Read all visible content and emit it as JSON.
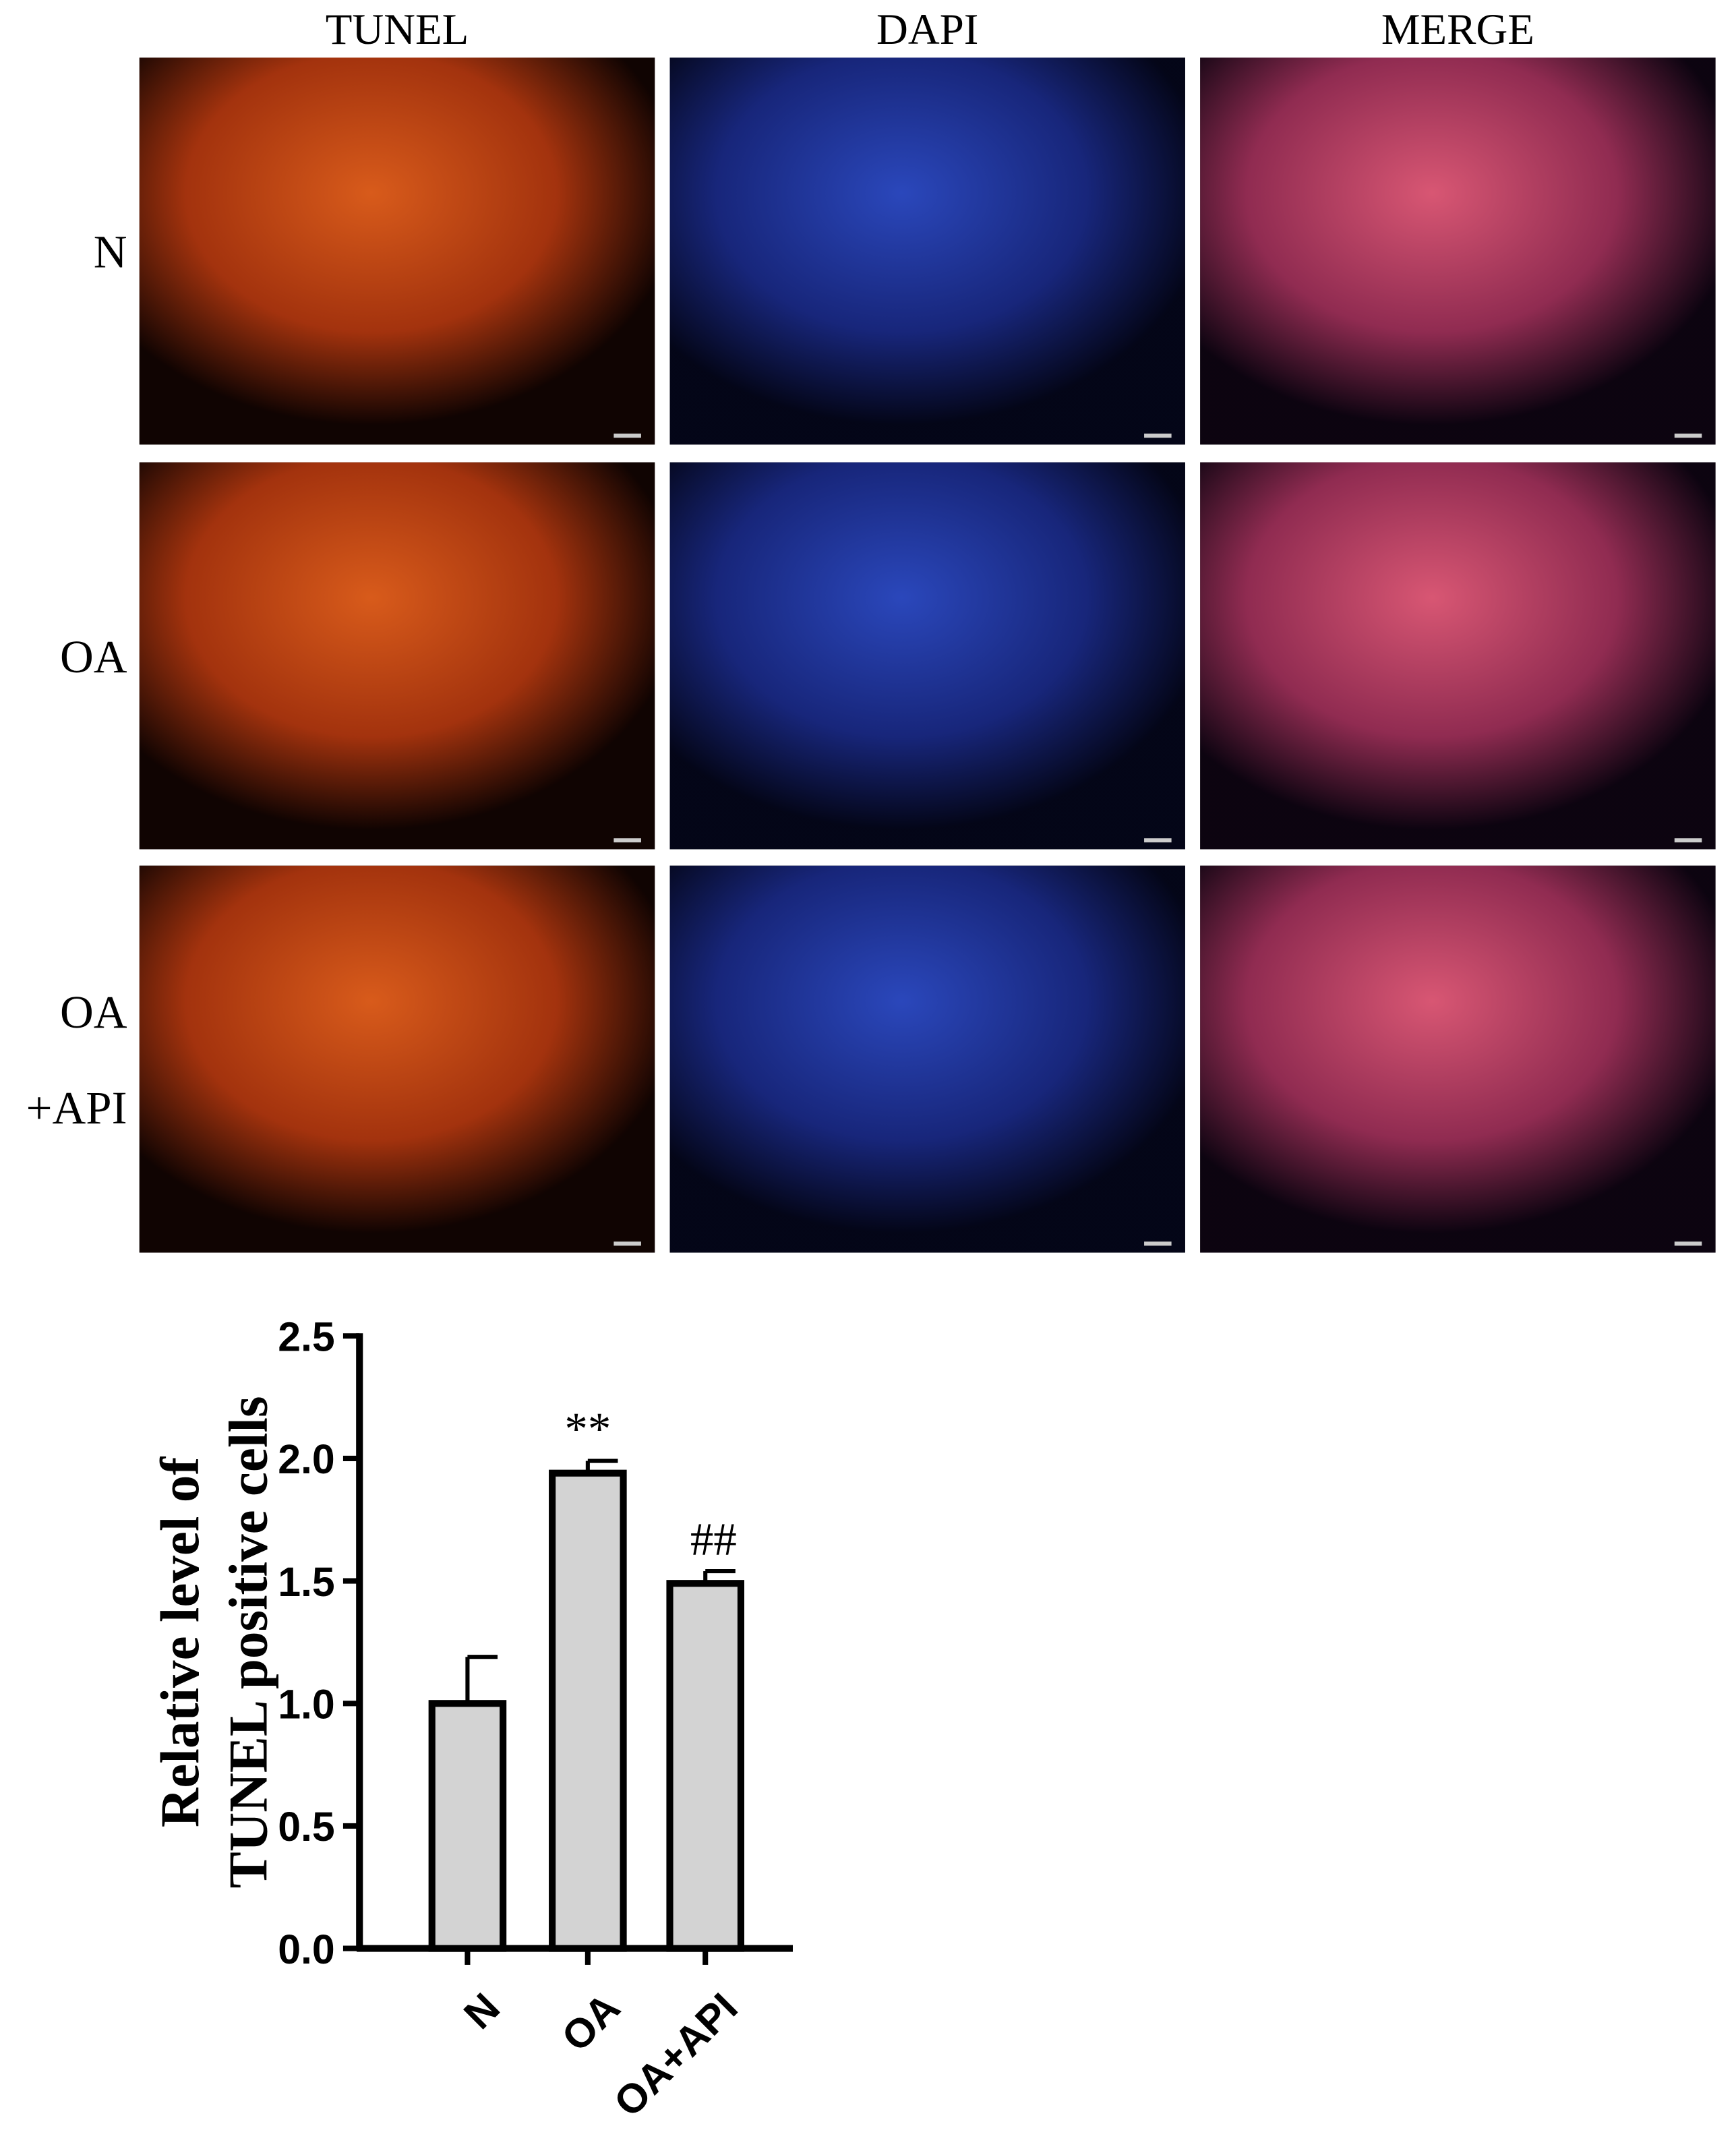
{
  "figure": {
    "columns": [
      "TUNEL",
      "DAPI",
      "MERGE"
    ],
    "rows": [
      [
        "N"
      ],
      [
        "OA"
      ],
      [
        "OA",
        "+API"
      ]
    ]
  },
  "chart_data": {
    "type": "bar",
    "ylabel": [
      "Relative level of",
      "TUNEL positive cells"
    ],
    "categories": [
      "N",
      "OA",
      "OA+API"
    ],
    "values": [
      1.0,
      1.94,
      1.49
    ],
    "errors": [
      0.19,
      0.05,
      0.05
    ],
    "annotations": [
      null,
      "**",
      "##"
    ],
    "color": "#d3d3d3",
    "ylim": [
      0,
      2.5
    ],
    "yticks": [
      {
        "value": 0,
        "label": "0.0"
      },
      0.5,
      {
        "value": 1,
        "label": "1.0"
      },
      1.5,
      {
        "value": 2,
        "label": "2.0"
      },
      2.5
    ]
  }
}
